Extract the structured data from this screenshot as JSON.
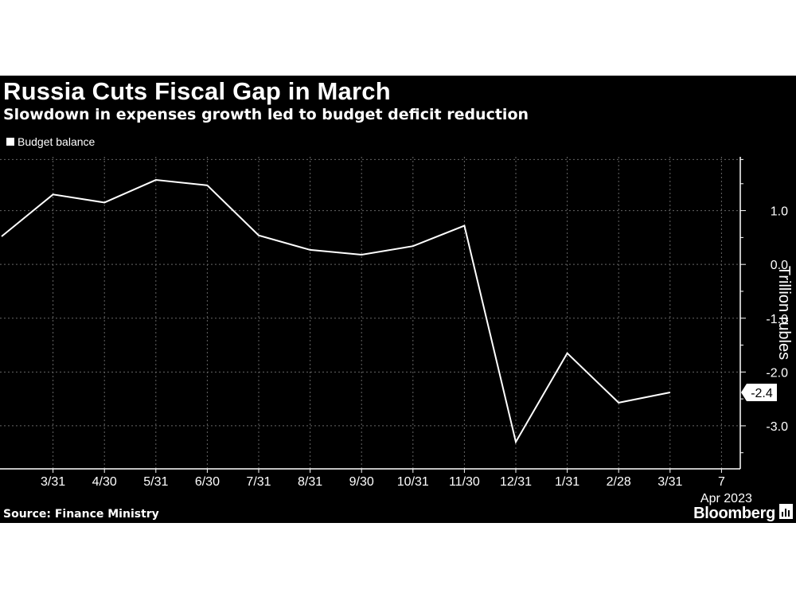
{
  "chart_data": {
    "type": "line",
    "title": "Russia Cuts Fiscal Gap in March",
    "subtitle": "Slowdown in expenses growth led to budget deficit reduction",
    "legend": "Budget balance",
    "legend_position": "top-left",
    "x_ticks": [
      "3/31",
      "4/30",
      "5/31",
      "6/30",
      "7/31",
      "8/31",
      "9/30",
      "10/31",
      "11/30",
      "12/31",
      "1/31",
      "2/28",
      "3/31",
      "7"
    ],
    "x_sublabel": "Apr 2023",
    "ylabel": "Trillion rubles",
    "y_ticks": [
      "1.0",
      "0.0",
      "-1.0",
      "-2.0",
      "-3.0"
    ],
    "ylim": [
      -3.8,
      2.0
    ],
    "grid": true,
    "series": [
      {
        "name": "Budget balance",
        "color": "#ffffff",
        "x": [
          "2/28",
          "3/31",
          "4/30",
          "5/31",
          "6/30",
          "7/31",
          "8/31",
          "9/30",
          "10/31",
          "11/30",
          "12/31",
          "1/31",
          "2/28",
          "3/31"
        ],
        "values": [
          0.52,
          1.3,
          1.15,
          1.57,
          1.47,
          0.54,
          0.27,
          0.18,
          0.34,
          0.72,
          -3.3,
          -1.65,
          -2.57,
          -2.38
        ]
      }
    ],
    "last_value_label": "-2.4"
  },
  "footer": {
    "source": "Source: Finance Ministry",
    "brand": "Bloomberg"
  }
}
